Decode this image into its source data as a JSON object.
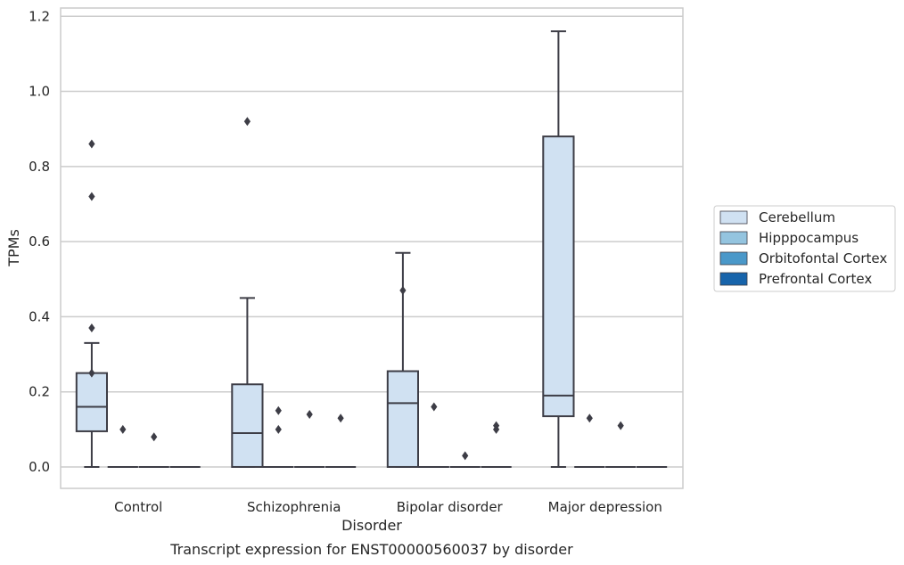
{
  "chart_data": {
    "type": "box",
    "xlabel": "Disorder",
    "ylabel": "TPMs",
    "caption": "Transcript expression for ENST00000560037 by disorder",
    "categories": [
      "Control",
      "Schizophrenia",
      "Bipolar disorder",
      "Major depression"
    ],
    "ylim": [
      -0.057,
      1.222
    ],
    "yticks": [
      0.0,
      0.2,
      0.4,
      0.6,
      0.8,
      1.0,
      1.2
    ],
    "ytick_labels": [
      "0.0",
      "0.2",
      "0.4",
      "0.6",
      "0.8",
      "1.0",
      "1.2"
    ],
    "grid": "horizontal",
    "legend_position": "right",
    "series": [
      {
        "name": "Cerebellum",
        "color": "#d0e1f2",
        "boxes": [
          {
            "whislo": 0.0,
            "q1": 0.095,
            "med": 0.16,
            "q3": 0.25,
            "whishi": 0.33,
            "fliers": [
              0.86,
              0.72,
              0.37,
              0.25
            ]
          },
          {
            "whislo": 0.0,
            "q1": 0.0,
            "med": 0.09,
            "q3": 0.22,
            "whishi": 0.45,
            "fliers": [
              0.92
            ]
          },
          {
            "whislo": 0.0,
            "q1": 0.0,
            "med": 0.17,
            "q3": 0.255,
            "whishi": 0.57,
            "fliers": [
              0.47
            ]
          },
          {
            "whislo": 0.0,
            "q1": 0.135,
            "med": 0.19,
            "q3": 0.88,
            "whishi": 1.16,
            "fliers": []
          }
        ]
      },
      {
        "name": "Hipppocampus",
        "color": "#94c4df",
        "boxes": [
          {
            "whislo": 0.0,
            "q1": 0.0,
            "med": 0.0,
            "q3": 0.0,
            "whishi": 0.0,
            "fliers": [
              0.1
            ]
          },
          {
            "whislo": 0.0,
            "q1": 0.0,
            "med": 0.0,
            "q3": 0.0,
            "whishi": 0.0,
            "fliers": [
              0.15,
              0.1
            ]
          },
          {
            "whislo": 0.0,
            "q1": 0.0,
            "med": 0.0,
            "q3": 0.0,
            "whishi": 0.0,
            "fliers": [
              0.16
            ]
          },
          {
            "whislo": 0.0,
            "q1": 0.0,
            "med": 0.0,
            "q3": 0.0,
            "whishi": 0.0,
            "fliers": [
              0.13
            ]
          }
        ]
      },
      {
        "name": "Orbitofontal Cortex",
        "color": "#4a98c9",
        "boxes": [
          {
            "whislo": 0.0,
            "q1": 0.0,
            "med": 0.0,
            "q3": 0.0,
            "whishi": 0.0,
            "fliers": [
              0.08
            ]
          },
          {
            "whislo": 0.0,
            "q1": 0.0,
            "med": 0.0,
            "q3": 0.0,
            "whishi": 0.0,
            "fliers": [
              0.14
            ]
          },
          {
            "whislo": 0.0,
            "q1": 0.0,
            "med": 0.0,
            "q3": 0.0,
            "whishi": 0.0,
            "fliers": [
              0.03
            ]
          },
          {
            "whislo": 0.0,
            "q1": 0.0,
            "med": 0.0,
            "q3": 0.0,
            "whishi": 0.0,
            "fliers": [
              0.11
            ]
          }
        ]
      },
      {
        "name": "Prefrontal Cortex",
        "color": "#1764ab",
        "boxes": [
          {
            "whislo": 0.0,
            "q1": 0.0,
            "med": 0.0,
            "q3": 0.0,
            "whishi": 0.0,
            "fliers": []
          },
          {
            "whislo": 0.0,
            "q1": 0.0,
            "med": 0.0,
            "q3": 0.0,
            "whishi": 0.0,
            "fliers": [
              0.13
            ]
          },
          {
            "whislo": 0.0,
            "q1": 0.0,
            "med": 0.0,
            "q3": 0.0,
            "whishi": 0.0,
            "fliers": [
              0.11,
              0.1
            ]
          },
          {
            "whislo": 0.0,
            "q1": 0.0,
            "med": 0.0,
            "q3": 0.0,
            "whishi": 0.0,
            "fliers": []
          }
        ]
      }
    ],
    "colors": {
      "grid": "#cccccc",
      "frame": "#cccccc",
      "line": "#3d3d46",
      "text": "#262626"
    }
  }
}
